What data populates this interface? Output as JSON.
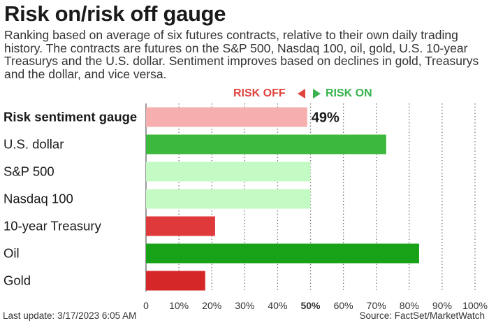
{
  "title": "Risk on/risk off gauge",
  "subtitle": "Ranking based on average of six futures contracts, relative to their own daily trading history. The contracts are futures on the S&P 500, Nasdaq 100, oil, gold, U.S. 10-year Treasurys and the U.S. dollar. Sentiment improves based on declines in gold, Treasurys and the dollar, and vice versa.",
  "legend": {
    "risk_off": "RISK OFF",
    "risk_on": "RISK ON"
  },
  "footer": {
    "last_update": "Last update: 3/17/2023 6:05 AM",
    "source": "Source: FactSet/MarketWatch"
  },
  "chart_data": {
    "type": "bar",
    "orientation": "horizontal",
    "categories": [
      "Risk sentiment gauge",
      "U.S. dollar",
      "S&P 500",
      "Nasdaq 100",
      "10-year Treasury",
      "Oil",
      "Gold"
    ],
    "values": [
      49,
      73,
      50,
      50,
      21,
      83,
      18
    ],
    "data_labels": [
      "49%",
      "",
      "",
      "",
      "",
      "",
      ""
    ],
    "bar_colors": [
      "#f6aeae",
      "#3cb93c",
      "#c4fac4",
      "#c4fac4",
      "#e0393b",
      "#17a217",
      "#d62728"
    ],
    "xlim": [
      0,
      100
    ],
    "x_ticks": [
      "0",
      "10%",
      "20%",
      "30%",
      "40%",
      "50%",
      "60%",
      "70%",
      "80%",
      "90%",
      "100%"
    ],
    "grid": "vertical dotted",
    "highlight_tick": "50%"
  }
}
